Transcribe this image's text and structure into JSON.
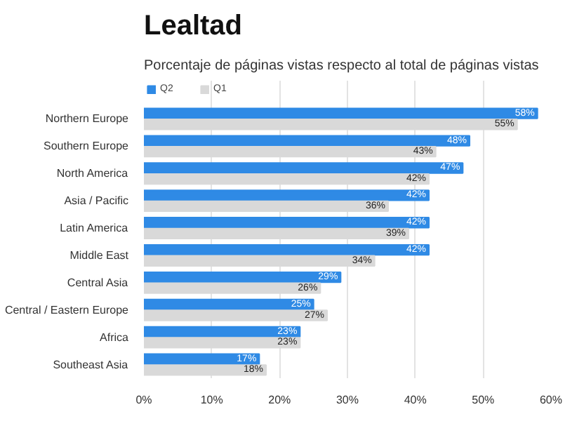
{
  "chart_data": {
    "type": "bar",
    "orientation": "horizontal",
    "title": "Lealtad",
    "subtitle": "Porcentaje de páginas vistas respecto al total de páginas vistas",
    "categories": [
      "Northern Europe",
      "Southern Europe",
      "North America",
      "Asia / Pacific",
      "Latin America",
      "Middle East",
      "Central Asia",
      "Central / Eastern Europe",
      "Africa",
      "Southeast Asia"
    ],
    "series": [
      {
        "name": "Q2",
        "color": "#2f8ae5",
        "values": [
          58,
          48,
          47,
          42,
          42,
          42,
          29,
          25,
          23,
          17
        ],
        "value_labels": [
          "58%",
          "48%",
          "47%",
          "42%",
          "42%",
          "42%",
          "29%",
          "25%",
          "23%",
          "17%"
        ]
      },
      {
        "name": "Q1",
        "color": "#d9d9d9",
        "values": [
          55,
          43,
          42,
          36,
          39,
          34,
          26,
          27,
          23,
          18
        ],
        "value_labels": [
          "55%",
          "43%",
          "42%",
          "36%",
          "39%",
          "34%",
          "26%",
          "27%",
          "23%",
          "18%"
        ]
      }
    ],
    "xlim": [
      0,
      60
    ],
    "xticks": [
      {
        "value": 0,
        "label": "0%"
      },
      {
        "value": 10,
        "label": "10%"
      },
      {
        "value": 20,
        "label": "20%"
      },
      {
        "value": 30,
        "label": "30%"
      },
      {
        "value": 40,
        "label": "40%"
      },
      {
        "value": 50,
        "label": "50%"
      },
      {
        "value": 60,
        "label": "60%"
      }
    ],
    "grid": "x",
    "legend": "top left"
  }
}
